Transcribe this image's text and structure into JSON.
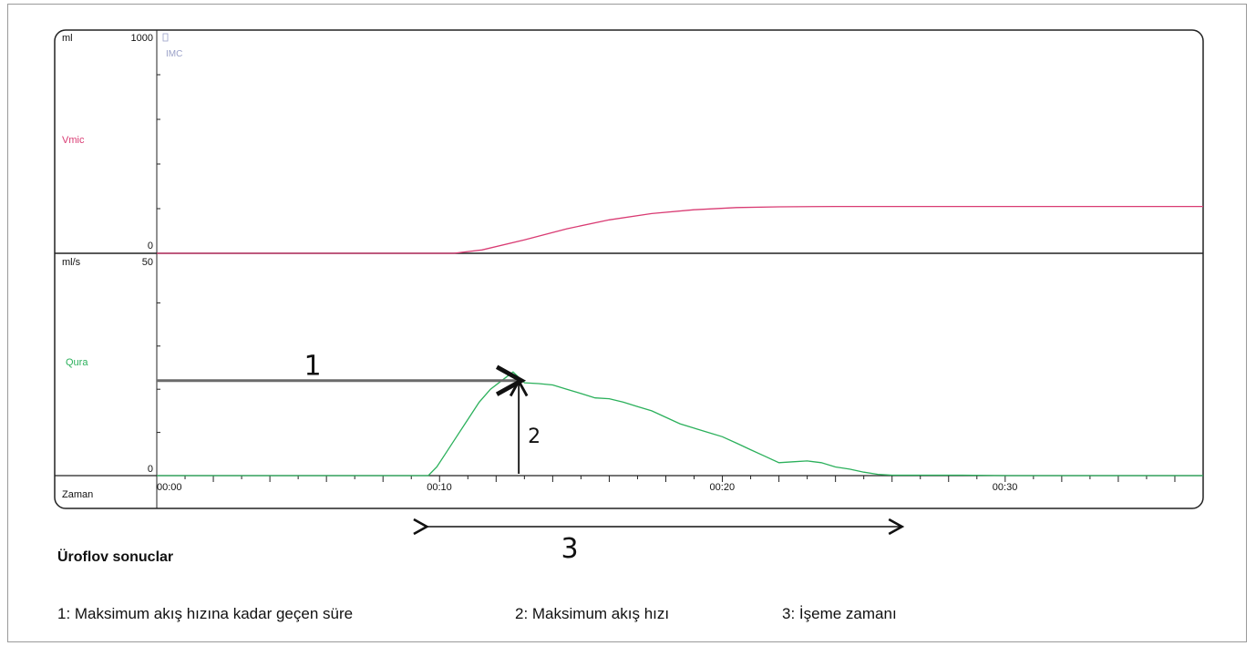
{
  "chart_data": [
    {
      "type": "line",
      "panel": "top",
      "unit_label": "ml",
      "series_label": "Vmic",
      "ylim": [
        0,
        1000
      ],
      "y_tick_labels": [
        "1000",
        "0"
      ],
      "marker_label": "IMC",
      "color": "#d93b73",
      "series": [
        {
          "name": "Vmic",
          "x": [
            0,
            8,
            10.5,
            11.5,
            13,
            14.5,
            16,
            17.5,
            19,
            20.5,
            22,
            24,
            26,
            28,
            37
          ],
          "y": [
            0,
            0,
            0,
            15,
            60,
            110,
            150,
            178,
            195,
            205,
            208,
            210,
            210,
            210,
            210
          ]
        }
      ]
    },
    {
      "type": "line",
      "panel": "bottom",
      "unit_label": "ml/s",
      "series_label": "Qura",
      "ylim": [
        0,
        50
      ],
      "y_tick_labels": [
        "50",
        "0"
      ],
      "color": "#2bb05b",
      "series": [
        {
          "name": "Qura",
          "x": [
            0,
            9.6,
            9.9,
            10.2,
            10.6,
            11,
            11.4,
            11.8,
            12.2,
            12.6,
            13,
            13.5,
            14,
            14.5,
            15,
            15.5,
            16,
            16.5,
            17,
            17.5,
            18,
            18.5,
            19,
            19.5,
            20,
            20.5,
            21,
            21.5,
            22,
            22.5,
            23,
            23.5,
            24,
            24.5,
            25,
            25.5,
            26,
            27,
            28.5,
            30,
            37
          ],
          "y": [
            0,
            0,
            2,
            5,
            9,
            13,
            17,
            20,
            22,
            24,
            21.5,
            21.3,
            21,
            20,
            19,
            18,
            17.8,
            17,
            16,
            15,
            13.5,
            12,
            11,
            10,
            9,
            7.5,
            6,
            4.5,
            3,
            3.2,
            3.4,
            3,
            2,
            1.5,
            0.8,
            0.3,
            0.1,
            0.1,
            0.1,
            0,
            0
          ]
        }
      ]
    }
  ],
  "x_axis": {
    "label": "Zaman",
    "range_seconds": [
      0,
      37
    ],
    "tick_labels": [
      {
        "value": 0,
        "text": "00:00"
      },
      {
        "value": 10,
        "text": "00:10"
      },
      {
        "value": 20,
        "text": "00:20"
      },
      {
        "value": 30,
        "text": "00:30"
      }
    ]
  },
  "annotations": {
    "one": {
      "text": "1",
      "from_x": 0,
      "to_x": 12.8,
      "y": 22
    },
    "two": {
      "text": "2",
      "x": 12.8,
      "from_y": 0,
      "to_y": 21.5
    },
    "three": {
      "text": "3",
      "from_x": 9.5,
      "to_x": 26.3
    }
  },
  "results": {
    "title": "Üroflov sonuclar",
    "legend": [
      "1: Maksimum akış hızına kadar geçen süre",
      "2: Maksimum akış hızı",
      "3: İşeme zamanı"
    ]
  }
}
